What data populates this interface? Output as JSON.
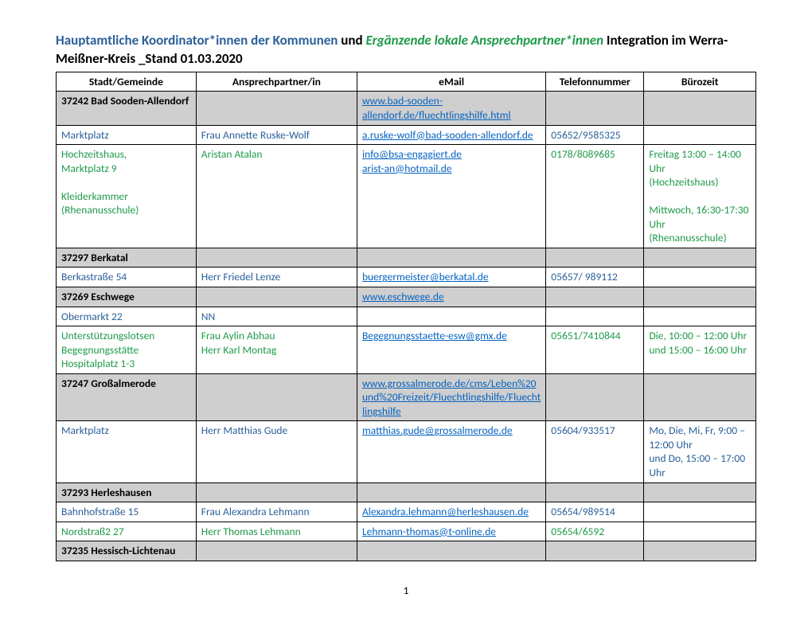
{
  "title": {
    "part1": "Hauptamtliche Koordinator*innen der Kommunen",
    "und": " und ",
    "part2": "Ergänzende lokale Ansprechpartner*innen",
    "part3": " Integration im Werra-Meißner-Kreis _Stand 01.03.2020"
  },
  "columns": [
    "Stadt/Gemeinde",
    "Ansprechpartner/in",
    "eMail",
    "Telefonnummer",
    "Bürozeit"
  ],
  "rows": [
    {
      "type": "section",
      "cells": [
        {
          "txt": "37242 Bad Sooden-Allendorf",
          "cls": ""
        },
        {
          "txt": "",
          "cls": ""
        },
        {
          "txt": "www.bad-sooden-allendorf.de/fluechtlingshilfe.html",
          "cls": "link"
        },
        {
          "txt": "",
          "cls": ""
        },
        {
          "txt": "",
          "cls": ""
        }
      ]
    },
    {
      "type": "plain",
      "cells": [
        {
          "txt": "Marktplatz",
          "cls": "blue-txt"
        },
        {
          "txt": "Frau Annette Ruske-Wolf",
          "cls": "blue-txt"
        },
        {
          "txt": "a.ruske-wolf@bad-sooden-allendorf.de",
          "cls": "link"
        },
        {
          "txt": "05652/9585325",
          "cls": "blue-txt"
        },
        {
          "txt": "",
          "cls": ""
        }
      ]
    },
    {
      "type": "plain",
      "cells": [
        {
          "txt": "Hochzeitshaus,\nMarktplatz 9\n\nKleiderkammer\n(Rhenanusschule)",
          "cls": "green-txt"
        },
        {
          "txt": "Aristan Atalan",
          "cls": "green-txt"
        },
        {
          "txt": "info@bsa-engagiert.de\narist-an@hotmail.de",
          "cls": "link"
        },
        {
          "txt": "0178/8089685",
          "cls": "green-txt"
        },
        {
          "txt": "Freitag 13:00  – 14:00 Uhr\n(Hochzeitshaus)\n\nMittwoch, 16:30-17:30 Uhr\n(Rhenanusschule)",
          "cls": "green-txt"
        }
      ]
    },
    {
      "type": "section",
      "cells": [
        {
          "txt": "37297 Berkatal",
          "cls": ""
        },
        {
          "txt": "",
          "cls": ""
        },
        {
          "txt": "",
          "cls": ""
        },
        {
          "txt": "",
          "cls": ""
        },
        {
          "txt": "",
          "cls": ""
        }
      ]
    },
    {
      "type": "plain",
      "cells": [
        {
          "txt": "Berkastraße 54",
          "cls": "blue-txt"
        },
        {
          "txt": "Herr Friedel Lenze",
          "cls": "blue-txt"
        },
        {
          "txt": "buergermeister@berkatal.de",
          "cls": "link"
        },
        {
          "txt": "05657/ 989112",
          "cls": "blue-txt"
        },
        {
          "txt": "",
          "cls": ""
        }
      ]
    },
    {
      "type": "section",
      "cells": [
        {
          "txt": "37269 Eschwege",
          "cls": ""
        },
        {
          "txt": "",
          "cls": ""
        },
        {
          "txt": "www.eschwege.de",
          "cls": "link"
        },
        {
          "txt": "",
          "cls": ""
        },
        {
          "txt": "",
          "cls": ""
        }
      ]
    },
    {
      "type": "plain",
      "cells": [
        {
          "txt": "Obermarkt 22",
          "cls": "blue-txt"
        },
        {
          "txt": "NN",
          "cls": "blue-txt"
        },
        {
          "txt": "",
          "cls": ""
        },
        {
          "txt": "",
          "cls": ""
        },
        {
          "txt": "",
          "cls": ""
        }
      ]
    },
    {
      "type": "plain",
      "cells": [
        {
          "txt": "Unterstützungslotsen\nBegegnungsstätte\nHospitalplatz 1-3",
          "cls": "green-txt"
        },
        {
          "txt": "Frau Aylin Abhau\nHerr Karl Montag",
          "cls": "green-txt"
        },
        {
          "txt": "Begegnungsstaette-esw@gmx.de",
          "cls": "link"
        },
        {
          "txt": "05651/7410844",
          "cls": "green-txt"
        },
        {
          "txt": "Die, 10:00 – 12:00 Uhr und 15:00 – 16:00 Uhr",
          "cls": "green-txt"
        }
      ]
    },
    {
      "type": "section",
      "cells": [
        {
          "txt": "37247 Großalmerode",
          "cls": ""
        },
        {
          "txt": "",
          "cls": ""
        },
        {
          "txt": "www.grossalmerode.de/cms/Leben%20und%20Freizeit/Fluechtlingshilfe/Fluechtlingshilfe",
          "cls": "link"
        },
        {
          "txt": "",
          "cls": ""
        },
        {
          "txt": "",
          "cls": ""
        }
      ]
    },
    {
      "type": "plain",
      "cells": [
        {
          "txt": "Marktplatz",
          "cls": "blue-txt"
        },
        {
          "txt": "Herr Matthias Gude",
          "cls": "blue-txt"
        },
        {
          "txt": "matthias.gude@grossalmerode.de",
          "cls": "link"
        },
        {
          "txt": "05604/933517",
          "cls": "blue-txt"
        },
        {
          "txt": "Mo, Die, Mi, Fr, 9:00 – 12:00 Uhr\nund Do, 15:00 – 17:00 Uhr",
          "cls": "blue-txt"
        }
      ]
    },
    {
      "type": "section",
      "cells": [
        {
          "txt": "37293 Herleshausen",
          "cls": ""
        },
        {
          "txt": "",
          "cls": ""
        },
        {
          "txt": "",
          "cls": ""
        },
        {
          "txt": "",
          "cls": ""
        },
        {
          "txt": "",
          "cls": ""
        }
      ]
    },
    {
      "type": "plain",
      "cells": [
        {
          "txt": "Bahnhofstraße 15",
          "cls": "blue-txt"
        },
        {
          "txt": "Frau Alexandra Lehmann",
          "cls": "blue-txt"
        },
        {
          "txt": "Alexandra.lehmann@herleshausen.de",
          "cls": "link"
        },
        {
          "txt": "05654/989514",
          "cls": "blue-txt"
        },
        {
          "txt": "",
          "cls": ""
        }
      ]
    },
    {
      "type": "plain",
      "cells": [
        {
          "txt": "Nordstraß2 27",
          "cls": "green-txt"
        },
        {
          "txt": "Herr Thomas Lehmann",
          "cls": "green-txt"
        },
        {
          "txt": "Lehmann-thomas@t-online.de",
          "cls": "link"
        },
        {
          "txt": "05654/6592",
          "cls": "green-txt"
        },
        {
          "txt": "",
          "cls": ""
        }
      ]
    },
    {
      "type": "section",
      "cells": [
        {
          "txt": "37235 Hessisch-Lichtenau",
          "cls": ""
        },
        {
          "txt": "",
          "cls": ""
        },
        {
          "txt": "",
          "cls": ""
        },
        {
          "txt": "",
          "cls": ""
        },
        {
          "txt": "",
          "cls": ""
        }
      ]
    }
  ],
  "pageNumber": "1"
}
